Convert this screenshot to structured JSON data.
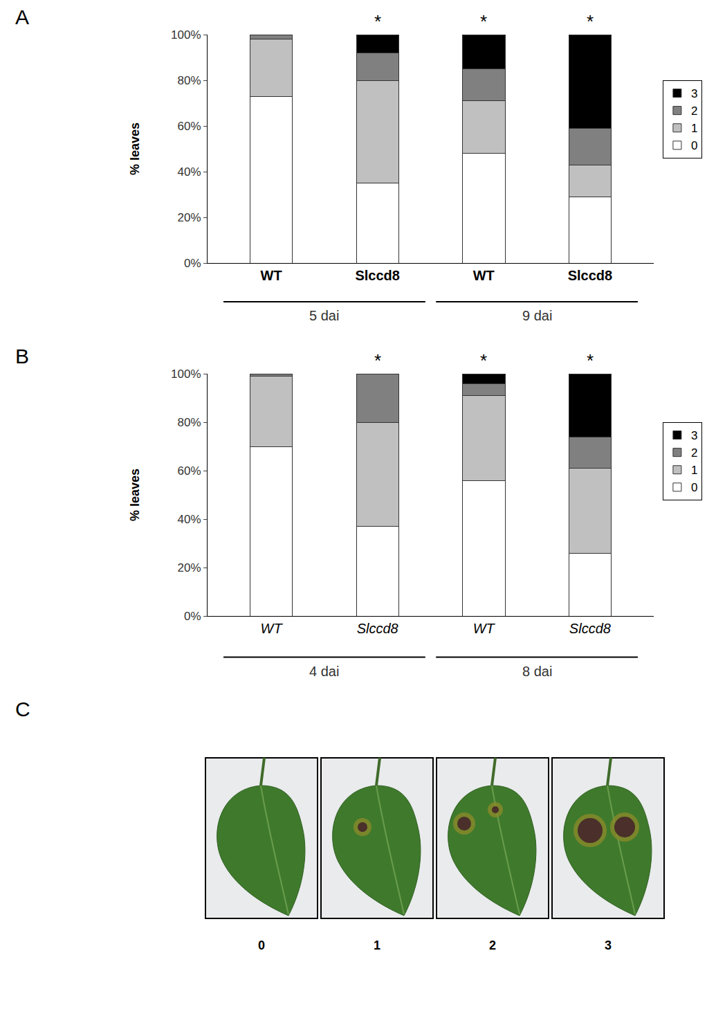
{
  "chart_data": [
    {
      "panel_label": "A",
      "type": "bar",
      "stacked": true,
      "categories": [
        "WT",
        "Slccd8",
        "WT",
        "Slccd8"
      ],
      "groups": [
        "5 dai",
        "9 dai"
      ],
      "y_label": "% leaves",
      "ylim": [
        0,
        100
      ],
      "yticks": [
        {
          "value": 0,
          "label": "0%"
        },
        {
          "value": 20,
          "label": "20%"
        },
        {
          "value": 40,
          "label": "40%"
        },
        {
          "value": 60,
          "label": "60%"
        },
        {
          "value": 80,
          "label": "80%"
        },
        {
          "value": 100,
          "label": "100%"
        }
      ],
      "series": [
        {
          "name": "0",
          "color": "#ffffff",
          "values": [
            73,
            35,
            48,
            29
          ]
        },
        {
          "name": "1",
          "color": "#c0c0c0",
          "values": [
            25,
            45,
            23,
            14
          ]
        },
        {
          "name": "2",
          "color": "#808080",
          "values": [
            2,
            12,
            14,
            16
          ]
        },
        {
          "name": "3",
          "color": "#000000",
          "values": [
            0,
            8,
            15,
            41
          ]
        }
      ],
      "annotations": [
        {
          "category_index": 1,
          "text": "*"
        },
        {
          "category_index": 2,
          "text": "*"
        },
        {
          "category_index": 3,
          "text": "*"
        }
      ],
      "legend": "right"
    },
    {
      "panel_label": "B",
      "type": "bar",
      "stacked": true,
      "categories": [
        "WT",
        "Slccd8",
        "WT",
        "Slccd8"
      ],
      "groups": [
        "4 dai",
        "8 dai"
      ],
      "y_label": "% leaves",
      "ylim": [
        0,
        100
      ],
      "yticks": [
        {
          "value": 0,
          "label": "0%"
        },
        {
          "value": 20,
          "label": "20%"
        },
        {
          "value": 40,
          "label": "40%"
        },
        {
          "value": 60,
          "label": "60%"
        },
        {
          "value": 80,
          "label": "80%"
        },
        {
          "value": 100,
          "label": "100%"
        }
      ],
      "series": [
        {
          "name": "0",
          "color": "#ffffff",
          "values": [
            70,
            37,
            56,
            26
          ]
        },
        {
          "name": "1",
          "color": "#c0c0c0",
          "values": [
            29,
            43,
            35,
            35
          ]
        },
        {
          "name": "2",
          "color": "#808080",
          "values": [
            1,
            20,
            5,
            13
          ]
        },
        {
          "name": "3",
          "color": "#000000",
          "values": [
            0,
            0,
            4,
            26
          ]
        }
      ],
      "annotations": [
        {
          "category_index": 1,
          "text": "*"
        },
        {
          "category_index": 2,
          "text": "*"
        },
        {
          "category_index": 3,
          "text": "*"
        }
      ],
      "legend": "right"
    }
  ],
  "panel_c": {
    "panel_label": "C",
    "labels": [
      "0",
      "1",
      "2",
      "3"
    ]
  }
}
